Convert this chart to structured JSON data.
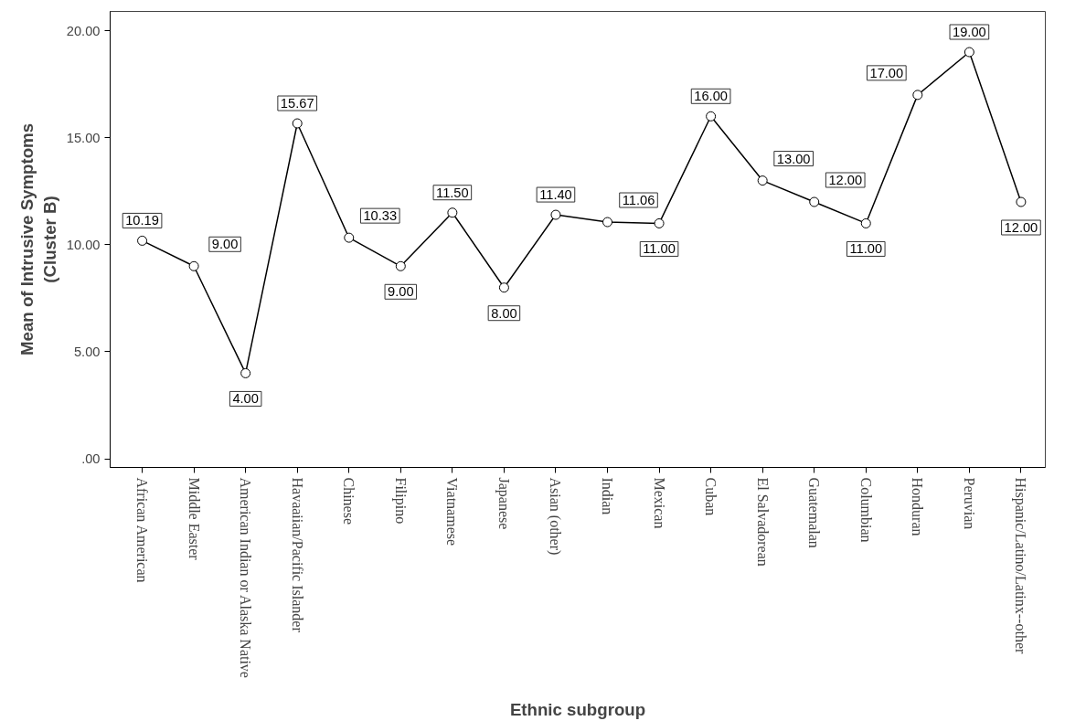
{
  "chart_data": {
    "type": "line",
    "xlabel": "Ethnic subgroup",
    "ylabel": "Mean of Intrusive Symptoms\n(Cluster B)",
    "categories": [
      "African American",
      "Middle Easter",
      "American Indian or Alaska Native",
      "Havaaiian/Pacific Islander",
      "Chinese",
      "Filipino",
      "Viatnamese",
      "Japanese",
      "Asian (other)",
      "Indian",
      "Mexican",
      "Cuban",
      "El Salvadorean",
      "Guatemalan",
      "Columbian",
      "Honduran",
      "Peruvian",
      "Hispanic/Latino/Latinx--other"
    ],
    "values": [
      10.19,
      9.0,
      4.0,
      15.67,
      10.33,
      9.0,
      11.5,
      8.0,
      11.4,
      11.06,
      11.0,
      16.0,
      13.0,
      12.0,
      11.0,
      17.0,
      19.0,
      12.0
    ],
    "value_labels": [
      "10.19",
      "9.00",
      "4.00",
      "15.67",
      "10.33",
      "9.00",
      "11.50",
      "8.00",
      "11.40",
      "11.06",
      "11.00",
      "16.00",
      "13.00",
      "12.00",
      "11.00",
      "17.00",
      "19.00",
      "12.00"
    ],
    "color": "#000000",
    "marker": "circle",
    "line_style": "solid",
    "ylim": [
      -0.4,
      20.9
    ],
    "yticks": [
      {
        "value": 0,
        "label": ".00"
      },
      {
        "value": 5,
        "label": "5.00"
      },
      {
        "value": 10,
        "label": "10.00"
      },
      {
        "value": 15,
        "label": "15.00"
      },
      {
        "value": 20,
        "label": "20.00"
      }
    ],
    "grid": false
  }
}
